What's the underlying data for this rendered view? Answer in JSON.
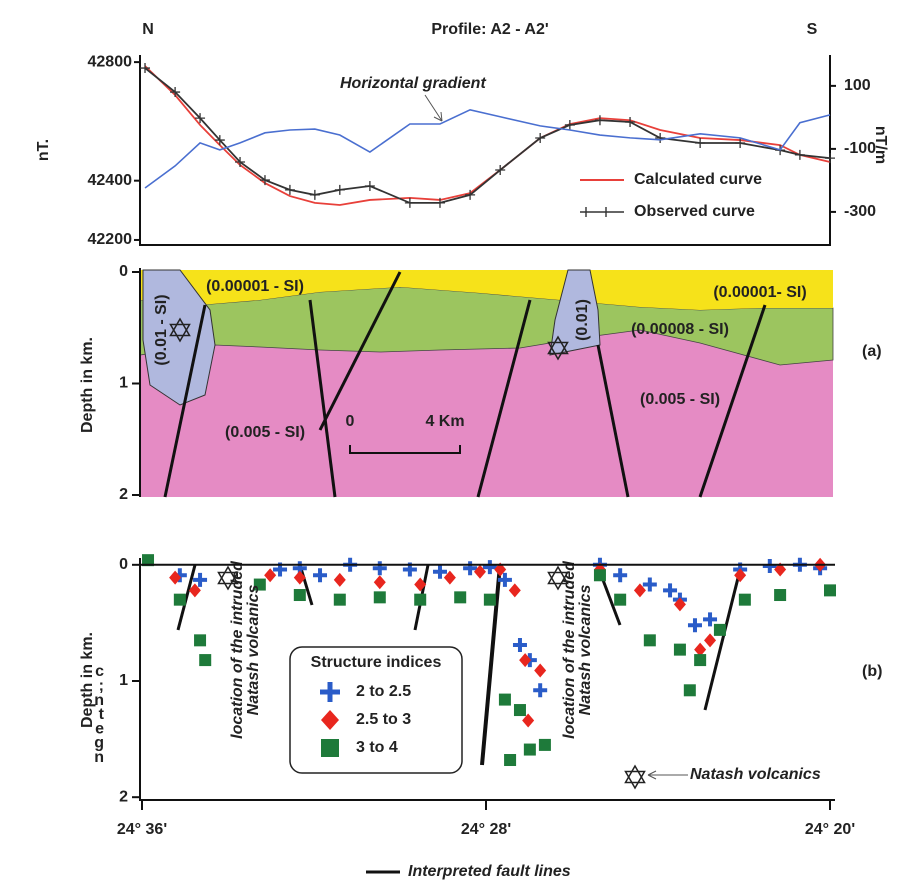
{
  "figure": {
    "left_fragments": [
      "c",
      ";",
      "n",
      "t",
      "e",
      "g",
      "n"
    ],
    "north": "N",
    "south": "S",
    "fault_legend": "Interpreted fault lines"
  },
  "chart_data": [
    {
      "type": "line",
      "title": "Profile: A2 - A2'",
      "y_label": "nT.",
      "y2_label": "nT/m",
      "xlim": [
        36,
        20
      ],
      "ylim": [
        42183,
        42824
      ],
      "yticks": [
        42200,
        42400,
        42800
      ],
      "y2lim": [
        -405,
        198
      ],
      "y2ticks": [
        -300,
        -100,
        100
      ],
      "x": [
        35.93,
        35.23,
        34.65,
        34.19,
        33.72,
        33.14,
        32.56,
        31.98,
        31.4,
        30.7,
        29.77,
        29.07,
        28.37,
        27.67,
        26.74,
        26.05,
        25.35,
        24.65,
        23.95,
        23.02,
        22.09,
        21.16,
        20.7,
        20.0
      ],
      "series": [
        {
          "name": "Calculated curve",
          "color": "#e8403a",
          "values": [
            42787,
            42689,
            42588,
            42520,
            42453,
            42392,
            42348,
            42325,
            42318,
            42335,
            42342,
            42335,
            42358,
            42436,
            42544,
            42591,
            42611,
            42604,
            42571,
            42544,
            42537,
            42520,
            42487,
            42463
          ]
        },
        {
          "name": "Observed curve",
          "color": "#333333",
          "marker": "+",
          "values": [
            42780,
            42699,
            42611,
            42537,
            42463,
            42402,
            42369,
            42352,
            42369,
            42382,
            42325,
            42325,
            42352,
            42436,
            42544,
            42588,
            42604,
            42598,
            42544,
            42527,
            42527,
            42503,
            42487,
            42476
          ]
        },
        {
          "name": "Horizontal gradient",
          "color": "#4a6fd0",
          "axis": "y2",
          "values": [
            -224,
            -154,
            -81,
            -103,
            -81,
            -49,
            -40,
            -37,
            -56,
            -110,
            -21,
            -21,
            24,
            2,
            -27,
            -40,
            -56,
            -65,
            -71,
            -52,
            -65,
            -103,
            -17,
            8
          ]
        }
      ]
    },
    {
      "type": "section",
      "y_label": "Depth in km.",
      "ylim": [
        0,
        2
      ],
      "yticks": [
        0,
        1,
        2
      ],
      "panel_label": "(a)",
      "layer_labels": [
        "(0.00001 - SI)",
        "(0.00001- SI)",
        "(0.01 - SI)",
        "(0.01)",
        "(0.00008 - SI)",
        "(0.005 - SI)",
        "(0.005 - SI)"
      ],
      "scale_bar": [
        "0",
        "4 Km"
      ]
    },
    {
      "type": "scatter",
      "y_label": "Depth in km.",
      "panel_label": "(b)",
      "xlim": [
        36,
        20
      ],
      "xticks": [
        {
          "value": 36,
          "label": "24° 36'"
        },
        {
          "value": 28,
          "label": "24° 28'"
        },
        {
          "value": 20,
          "label": "24° 20'"
        }
      ],
      "ylim": [
        -0.05,
        2.05
      ],
      "yticks": [
        0,
        1,
        2
      ],
      "legend_title": "Structure indices",
      "annotations": [
        [
          "location of the intruded",
          "Natash volcanics"
        ],
        [
          "location of the intruded",
          "Natash volcanics"
        ]
      ],
      "star_label": "Natash volcanics",
      "series": [
        {
          "name": "2 to 2.5",
          "color": "#2a5cc8",
          "marker": "plus",
          "x": [
            35.12,
            34.65,
            32.79,
            32.33,
            31.86,
            31.16,
            30.47,
            29.77,
            29.07,
            28.37,
            27.91,
            27.56,
            27.21,
            26.98,
            26.74,
            25.35,
            24.88,
            24.19,
            23.72,
            23.49,
            23.14,
            22.79,
            22.09,
            21.4,
            20.7,
            20.23
          ],
          "values": [
            0.09,
            0.13,
            0.04,
            0.03,
            0.09,
            0.0,
            0.03,
            0.04,
            0.06,
            0.03,
            0.02,
            0.13,
            0.69,
            0.82,
            1.08,
            0.0,
            0.09,
            0.17,
            0.22,
            0.3,
            0.52,
            0.47,
            0.04,
            0.01,
            0.0,
            0.03
          ]
        },
        {
          "name": "2.5 to 3",
          "color": "#e8261e",
          "marker": "diamond",
          "x": [
            35.23,
            34.77,
            33.02,
            32.33,
            31.4,
            30.47,
            29.53,
            28.84,
            28.14,
            27.67,
            27.33,
            27.09,
            27.02,
            26.74,
            25.35,
            24.42,
            23.49,
            23.02,
            22.79,
            22.09,
            21.16,
            20.23
          ],
          "values": [
            0.11,
            0.22,
            0.09,
            0.11,
            0.13,
            0.15,
            0.17,
            0.11,
            0.06,
            0.04,
            0.22,
            0.82,
            1.34,
            0.91,
            0.04,
            0.22,
            0.34,
            0.73,
            0.65,
            0.09,
            0.04,
            0.0
          ]
        },
        {
          "name": "3 to 4",
          "color": "#1e7a3a",
          "marker": "square",
          "x": [
            35.86,
            35.12,
            34.65,
            34.53,
            33.26,
            32.33,
            31.4,
            30.47,
            29.53,
            28.6,
            27.91,
            27.56,
            27.44,
            27.21,
            26.98,
            26.63,
            25.35,
            24.88,
            24.19,
            23.49,
            23.26,
            23.02,
            22.56,
            21.98,
            21.16,
            20.0
          ],
          "values": [
            -0.04,
            0.3,
            0.65,
            0.82,
            0.17,
            0.26,
            0.3,
            0.28,
            0.3,
            0.28,
            0.3,
            1.16,
            1.68,
            1.25,
            1.59,
            1.55,
            0.09,
            0.3,
            0.65,
            0.73,
            1.08,
            0.82,
            0.56,
            0.3,
            0.26,
            0.22
          ]
        }
      ]
    }
  ]
}
